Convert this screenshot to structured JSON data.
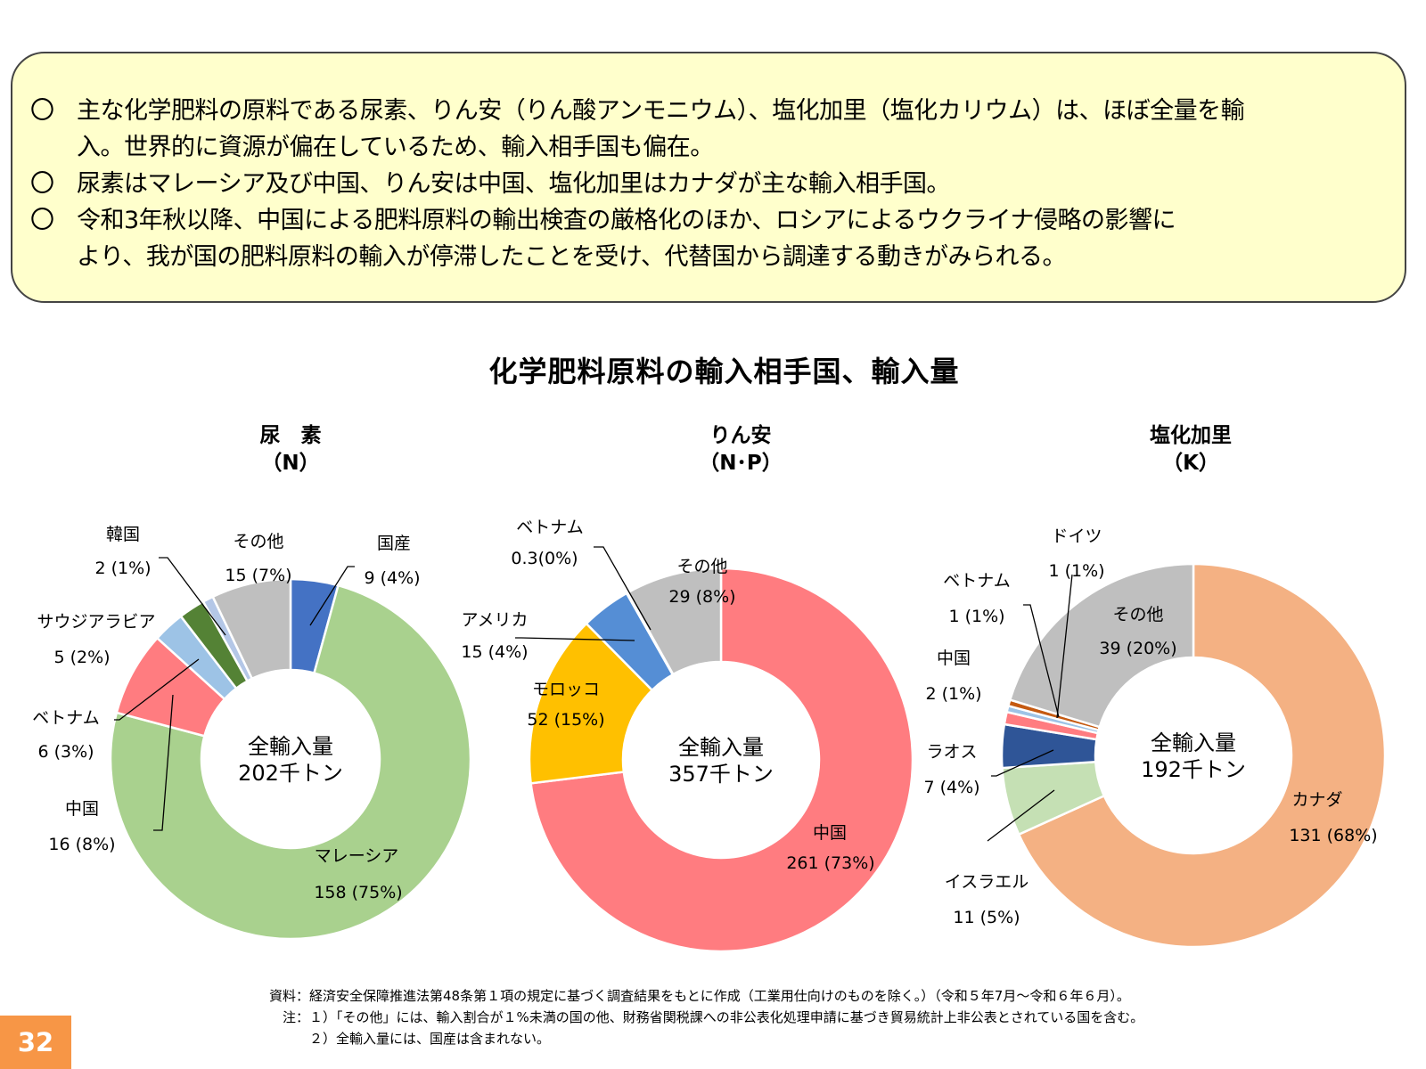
{
  "summary": {
    "bullets": [
      {
        "mark": "〇",
        "lines": [
          "主な化学肥料の原料である尿素、りん安（りん酸アンモニウム）、塩化加里（塩化カリウム）は、ほぼ全量を輸",
          "入。世界的に資源が偏在しているため、輸入相手国も偏在。"
        ]
      },
      {
        "mark": "〇",
        "lines": [
          "尿素はマレーシア及び中国、りん安は中国、塩化加里はカナダが主な輸入相手国。"
        ]
      },
      {
        "mark": "〇",
        "lines": [
          "令和3年秋以降、中国による肥料原料の輸出検査の厳格化のほか、ロシアによるウクライナ侵略の影響に",
          "より、我が国の肥料原料の輸入が停滞したことを受け、代替国から調達する動きがみられる。"
        ]
      }
    ]
  },
  "main_title": "化学肥料原料の輸入相手国、輸入量",
  "chart_data": [
    {
      "type": "pie",
      "title": "尿　素",
      "subtitle": "（N）",
      "center_label": [
        "全輸入量",
        "202千トン"
      ],
      "slices": [
        {
          "name": "国産",
          "value": 9,
          "percent": "4%",
          "value_label": "9 (4%)",
          "color": "#4472c4"
        },
        {
          "name": "マレーシア",
          "value": 158,
          "percent": "75%",
          "value_label": "158 (75%)",
          "color": "#a9d18e"
        },
        {
          "name": "中国",
          "value": 16,
          "percent": "8%",
          "value_label": "16 (8%)",
          "color": "#ff7c80"
        },
        {
          "name": "ベトナム",
          "value": 6,
          "percent": "3%",
          "value_label": "6 (3%)",
          "color": "#9dc3e6"
        },
        {
          "name": "サウジアラビア",
          "value": 5,
          "percent": "2%",
          "value_label": "5 (2%)",
          "color": "#548235"
        },
        {
          "name": "韓国",
          "value": 2,
          "percent": "1%",
          "value_label": "2 (1%)",
          "color": "#b4c7e7"
        },
        {
          "name": "その他",
          "value": 15,
          "percent": "7%",
          "value_label": "15 (7%)",
          "color": "#bfbfbf"
        }
      ]
    },
    {
      "type": "pie",
      "title": "りん安",
      "subtitle": "（N･P）",
      "center_label": [
        "全輸入量",
        "357千トン"
      ],
      "slices": [
        {
          "name": "中国",
          "value": 261,
          "percent": "73%",
          "value_label": "261 (73%)",
          "color": "#ff7c80"
        },
        {
          "name": "モロッコ",
          "value": 52,
          "percent": "15%",
          "value_label": "52 (15%)",
          "color": "#ffc000"
        },
        {
          "name": "アメリカ",
          "value": 15,
          "percent": "4%",
          "value_label": "15 (4%)",
          "color": "#558ed5"
        },
        {
          "name": "ベトナム",
          "value": 0.3,
          "percent": "0%",
          "value_label": "0.3(0%)",
          "color": "#9dc3e6"
        },
        {
          "name": "その他",
          "value": 29,
          "percent": "8%",
          "value_label": "29 (8%)",
          "color": "#bfbfbf"
        }
      ]
    },
    {
      "type": "pie",
      "title": "塩化加里",
      "subtitle": "（K）",
      "center_label": [
        "全輸入量",
        "192千トン"
      ],
      "slices": [
        {
          "name": "カナダ",
          "value": 131,
          "percent": "68%",
          "value_label": "131 (68%)",
          "color": "#f4b183"
        },
        {
          "name": "イスラエル",
          "value": 11,
          "percent": "5%",
          "value_label": "11 (5%)",
          "color": "#c5e0b4"
        },
        {
          "name": "ラオス",
          "value": 7,
          "percent": "4%",
          "value_label": "7 (4%)",
          "color": "#2f5597"
        },
        {
          "name": "中国",
          "value": 2,
          "percent": "1%",
          "value_label": "2 (1%)",
          "color": "#ff7c80"
        },
        {
          "name": "ベトナム",
          "value": 1,
          "percent": "1%",
          "value_label": "1 (1%)",
          "color": "#9dc3e6"
        },
        {
          "name": "ドイツ",
          "value": 1,
          "percent": "1%",
          "value_label": "1 (1%)",
          "color": "#c55a11"
        },
        {
          "name": "その他",
          "value": 39,
          "percent": "20%",
          "value_label": "39 (20%)",
          "color": "#bfbfbf"
        }
      ]
    }
  ],
  "notes": [
    "資料：経済安全保障推進法第48条第１項の規定に基づく調査結果をもとに作成（工業用仕向けのものを除く。）（令和５年7月～令和６年６月）。",
    "　注：１）「その他」には、輸入割合が１%未満の国の他、財務省関税課への非公表化処理申請に基づき貿易統計上非公表とされている国を含む。",
    "　　　２）全輸入量には、国産は含まれない。"
  ],
  "page_number": "32"
}
